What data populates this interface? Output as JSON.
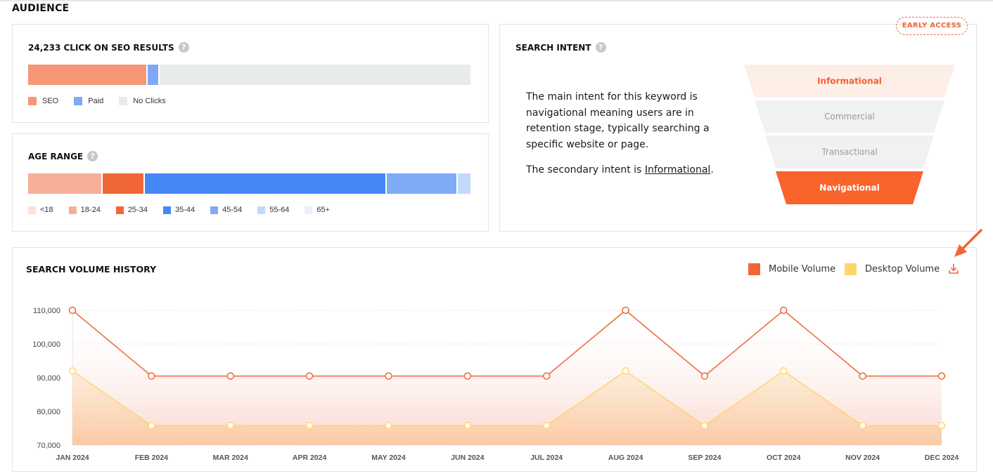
{
  "section_title": "AUDIENCE",
  "clicks_card": {
    "title": "24,233 CLICK ON SEO RESULTS",
    "help_icon": "question-circle-icon",
    "segments": [
      {
        "name": "SEO",
        "fraction": 0.267,
        "color": "#f79675"
      },
      {
        "name": "Paid",
        "fraction": 0.027,
        "color": "#7fa9f6"
      },
      {
        "name": "No Clicks",
        "fraction": 0.706,
        "color": "#e8ebeb"
      }
    ],
    "legend": [
      "SEO",
      "Paid",
      "No Clicks"
    ]
  },
  "age_card": {
    "title": "AGE RANGE",
    "help_icon": "question-circle-icon",
    "segments": [
      {
        "name": "<18",
        "fraction": 0.0,
        "color": "#fde0d6"
      },
      {
        "name": "18-24",
        "fraction": 0.165,
        "color": "#f8ae96"
      },
      {
        "name": "25-34",
        "fraction": 0.095,
        "color": "#f06638"
      },
      {
        "name": "35-44",
        "fraction": 0.548,
        "color": "#4388f5"
      },
      {
        "name": "45-54",
        "fraction": 0.16,
        "color": "#7eaaf6"
      },
      {
        "name": "55-64",
        "fraction": 0.032,
        "color": "#c4d8fb"
      },
      {
        "name": "65+",
        "fraction": 0.0,
        "color": "#e9f1fe"
      }
    ],
    "legend": [
      "<18",
      "18-24",
      "25-34",
      "35-44",
      "45-54",
      "55-64",
      "65+"
    ]
  },
  "intent_card": {
    "title": "SEARCH INTENT",
    "badge": "EARLY ACCESS",
    "paragraph1": "The main intent for this keyword is navigational meaning users are in retention stage, typically searching a specific website or page.",
    "paragraph2_prefix": "The secondary intent is ",
    "paragraph2_link": "Informational",
    "paragraph2_suffix": ".",
    "funnel": [
      {
        "label": "Informational",
        "state": "secondary"
      },
      {
        "label": "Commercial",
        "state": "none"
      },
      {
        "label": "Transactional",
        "state": "none"
      },
      {
        "label": "Navigational",
        "state": "primary"
      }
    ]
  },
  "volume_card": {
    "title": "SEARCH VOLUME HISTORY",
    "download_icon": "download-icon",
    "callout_icon": "arrow-pointer-icon"
  },
  "chart_data": {
    "type": "area",
    "categories": [
      "JAN 2024",
      "FEB 2024",
      "MAR 2024",
      "APR 2024",
      "MAY 2024",
      "JUN 2024",
      "JUL 2024",
      "AUG 2024",
      "SEP 2024",
      "OCT 2024",
      "NOV 2024",
      "DEC 2024"
    ],
    "series": [
      {
        "name": "Mobile Volume",
        "color": "#f06638",
        "values": [
          110000,
          90500,
          90500,
          90500,
          90500,
          90500,
          90500,
          110000,
          90500,
          110000,
          90500,
          90500
        ]
      },
      {
        "name": "Desktop Volume",
        "color": "#ffd56b",
        "values": [
          92000,
          75800,
          75800,
          75800,
          75800,
          75800,
          75800,
          92000,
          75800,
          92000,
          75800,
          75800
        ]
      }
    ],
    "yticks": [
      70000,
      80000,
      90000,
      100000,
      110000
    ],
    "ytick_labels": [
      "70,000",
      "80,000",
      "90,000",
      "100,000",
      "110,000"
    ],
    "ylim": [
      70000,
      110000
    ],
    "grid": true,
    "legend_position": "top-right"
  }
}
